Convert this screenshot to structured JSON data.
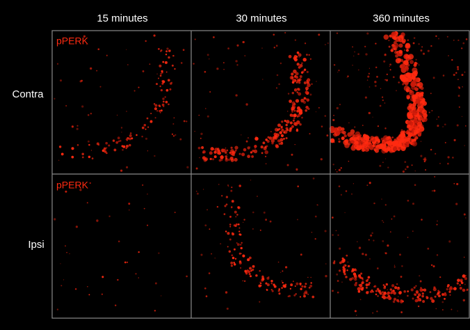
{
  "column_headers": [
    "15 minutes",
    "30 minutes",
    "360 minutes"
  ],
  "row_labels": [
    "Contra",
    "Ipsi"
  ],
  "panel_labels": [
    "pPERK",
    "pPERK"
  ]
}
